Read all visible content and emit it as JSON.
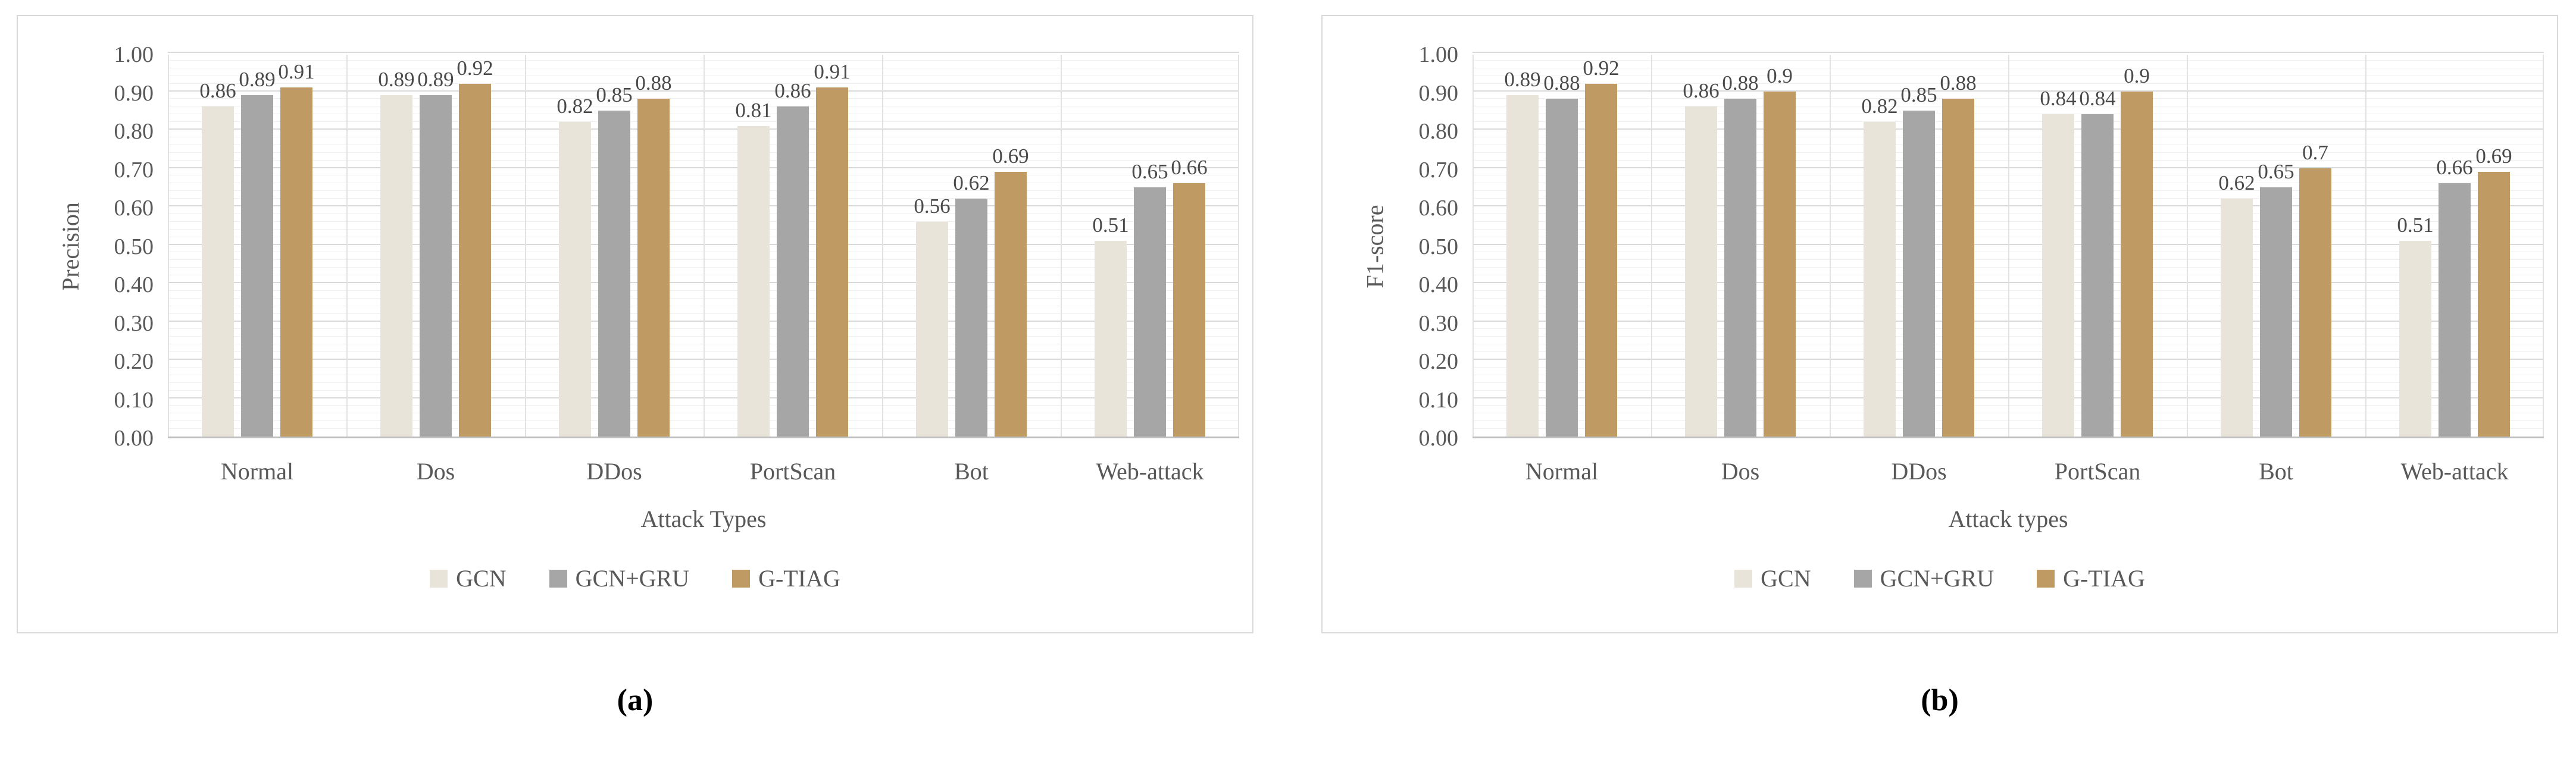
{
  "figure": {
    "captions": [
      "(a)",
      "(b)"
    ]
  },
  "chart_data": [
    {
      "type": "bar",
      "title": "",
      "xlabel": "Attack Types",
      "ylabel": "Precision",
      "ylim": [
        0,
        1
      ],
      "grid": true,
      "legend_position": "bottom",
      "caption": "(a)",
      "yticks": [
        "0.00",
        "0.10",
        "0.20",
        "0.30",
        "0.40",
        "0.50",
        "0.60",
        "0.70",
        "0.80",
        "0.90",
        "1.00"
      ],
      "categories": [
        "Normal",
        "Dos",
        "DDos",
        "PortScan",
        "Bot",
        "Web-attack"
      ],
      "series": [
        {
          "name": "GCN",
          "color": "#e8e4d9",
          "values": [
            0.86,
            0.89,
            0.82,
            0.81,
            0.56,
            0.51
          ],
          "labels": [
            "0.86",
            "0.89",
            "0.82",
            "0.81",
            "0.56",
            "0.51"
          ]
        },
        {
          "name": "GCN+GRU",
          "color": "#a6a6a6",
          "values": [
            0.89,
            0.89,
            0.85,
            0.86,
            0.62,
            0.65
          ],
          "labels": [
            "0.89",
            "0.89",
            "0.85",
            "0.86",
            "0.62",
            "0.65"
          ]
        },
        {
          "name": "G-TIAG",
          "color": "#bf9b63",
          "values": [
            0.91,
            0.92,
            0.88,
            0.91,
            0.69,
            0.66
          ],
          "labels": [
            "0.91",
            "0.92",
            "0.88",
            "0.91",
            "0.69",
            "0.66"
          ]
        }
      ]
    },
    {
      "type": "bar",
      "title": "",
      "xlabel": "Attack types",
      "ylabel": "F1-score",
      "ylim": [
        0,
        1
      ],
      "grid": true,
      "legend_position": "bottom",
      "caption": "(b)",
      "yticks": [
        "0.00",
        "0.10",
        "0.20",
        "0.30",
        "0.40",
        "0.50",
        "0.60",
        "0.70",
        "0.80",
        "0.90",
        "1.00"
      ],
      "categories": [
        "Normal",
        "Dos",
        "DDos",
        "PortScan",
        "Bot",
        "Web-attack"
      ],
      "series": [
        {
          "name": "GCN",
          "color": "#e8e4d9",
          "values": [
            0.89,
            0.86,
            0.82,
            0.84,
            0.62,
            0.51
          ],
          "labels": [
            "0.89",
            "0.86",
            "0.82",
            "0.84",
            "0.62",
            "0.51"
          ]
        },
        {
          "name": "GCN+GRU",
          "color": "#a6a6a6",
          "values": [
            0.88,
            0.88,
            0.85,
            0.84,
            0.65,
            0.66
          ],
          "labels": [
            "0.88",
            "0.88",
            "0.85",
            "0.84",
            "0.65",
            "0.66"
          ]
        },
        {
          "name": "G-TIAG",
          "color": "#bf9b63",
          "values": [
            0.92,
            0.9,
            0.88,
            0.9,
            0.7,
            0.69
          ],
          "labels": [
            "0.92",
            "0.9",
            "0.88",
            "0.9",
            "0.7",
            "0.69"
          ]
        }
      ]
    }
  ]
}
